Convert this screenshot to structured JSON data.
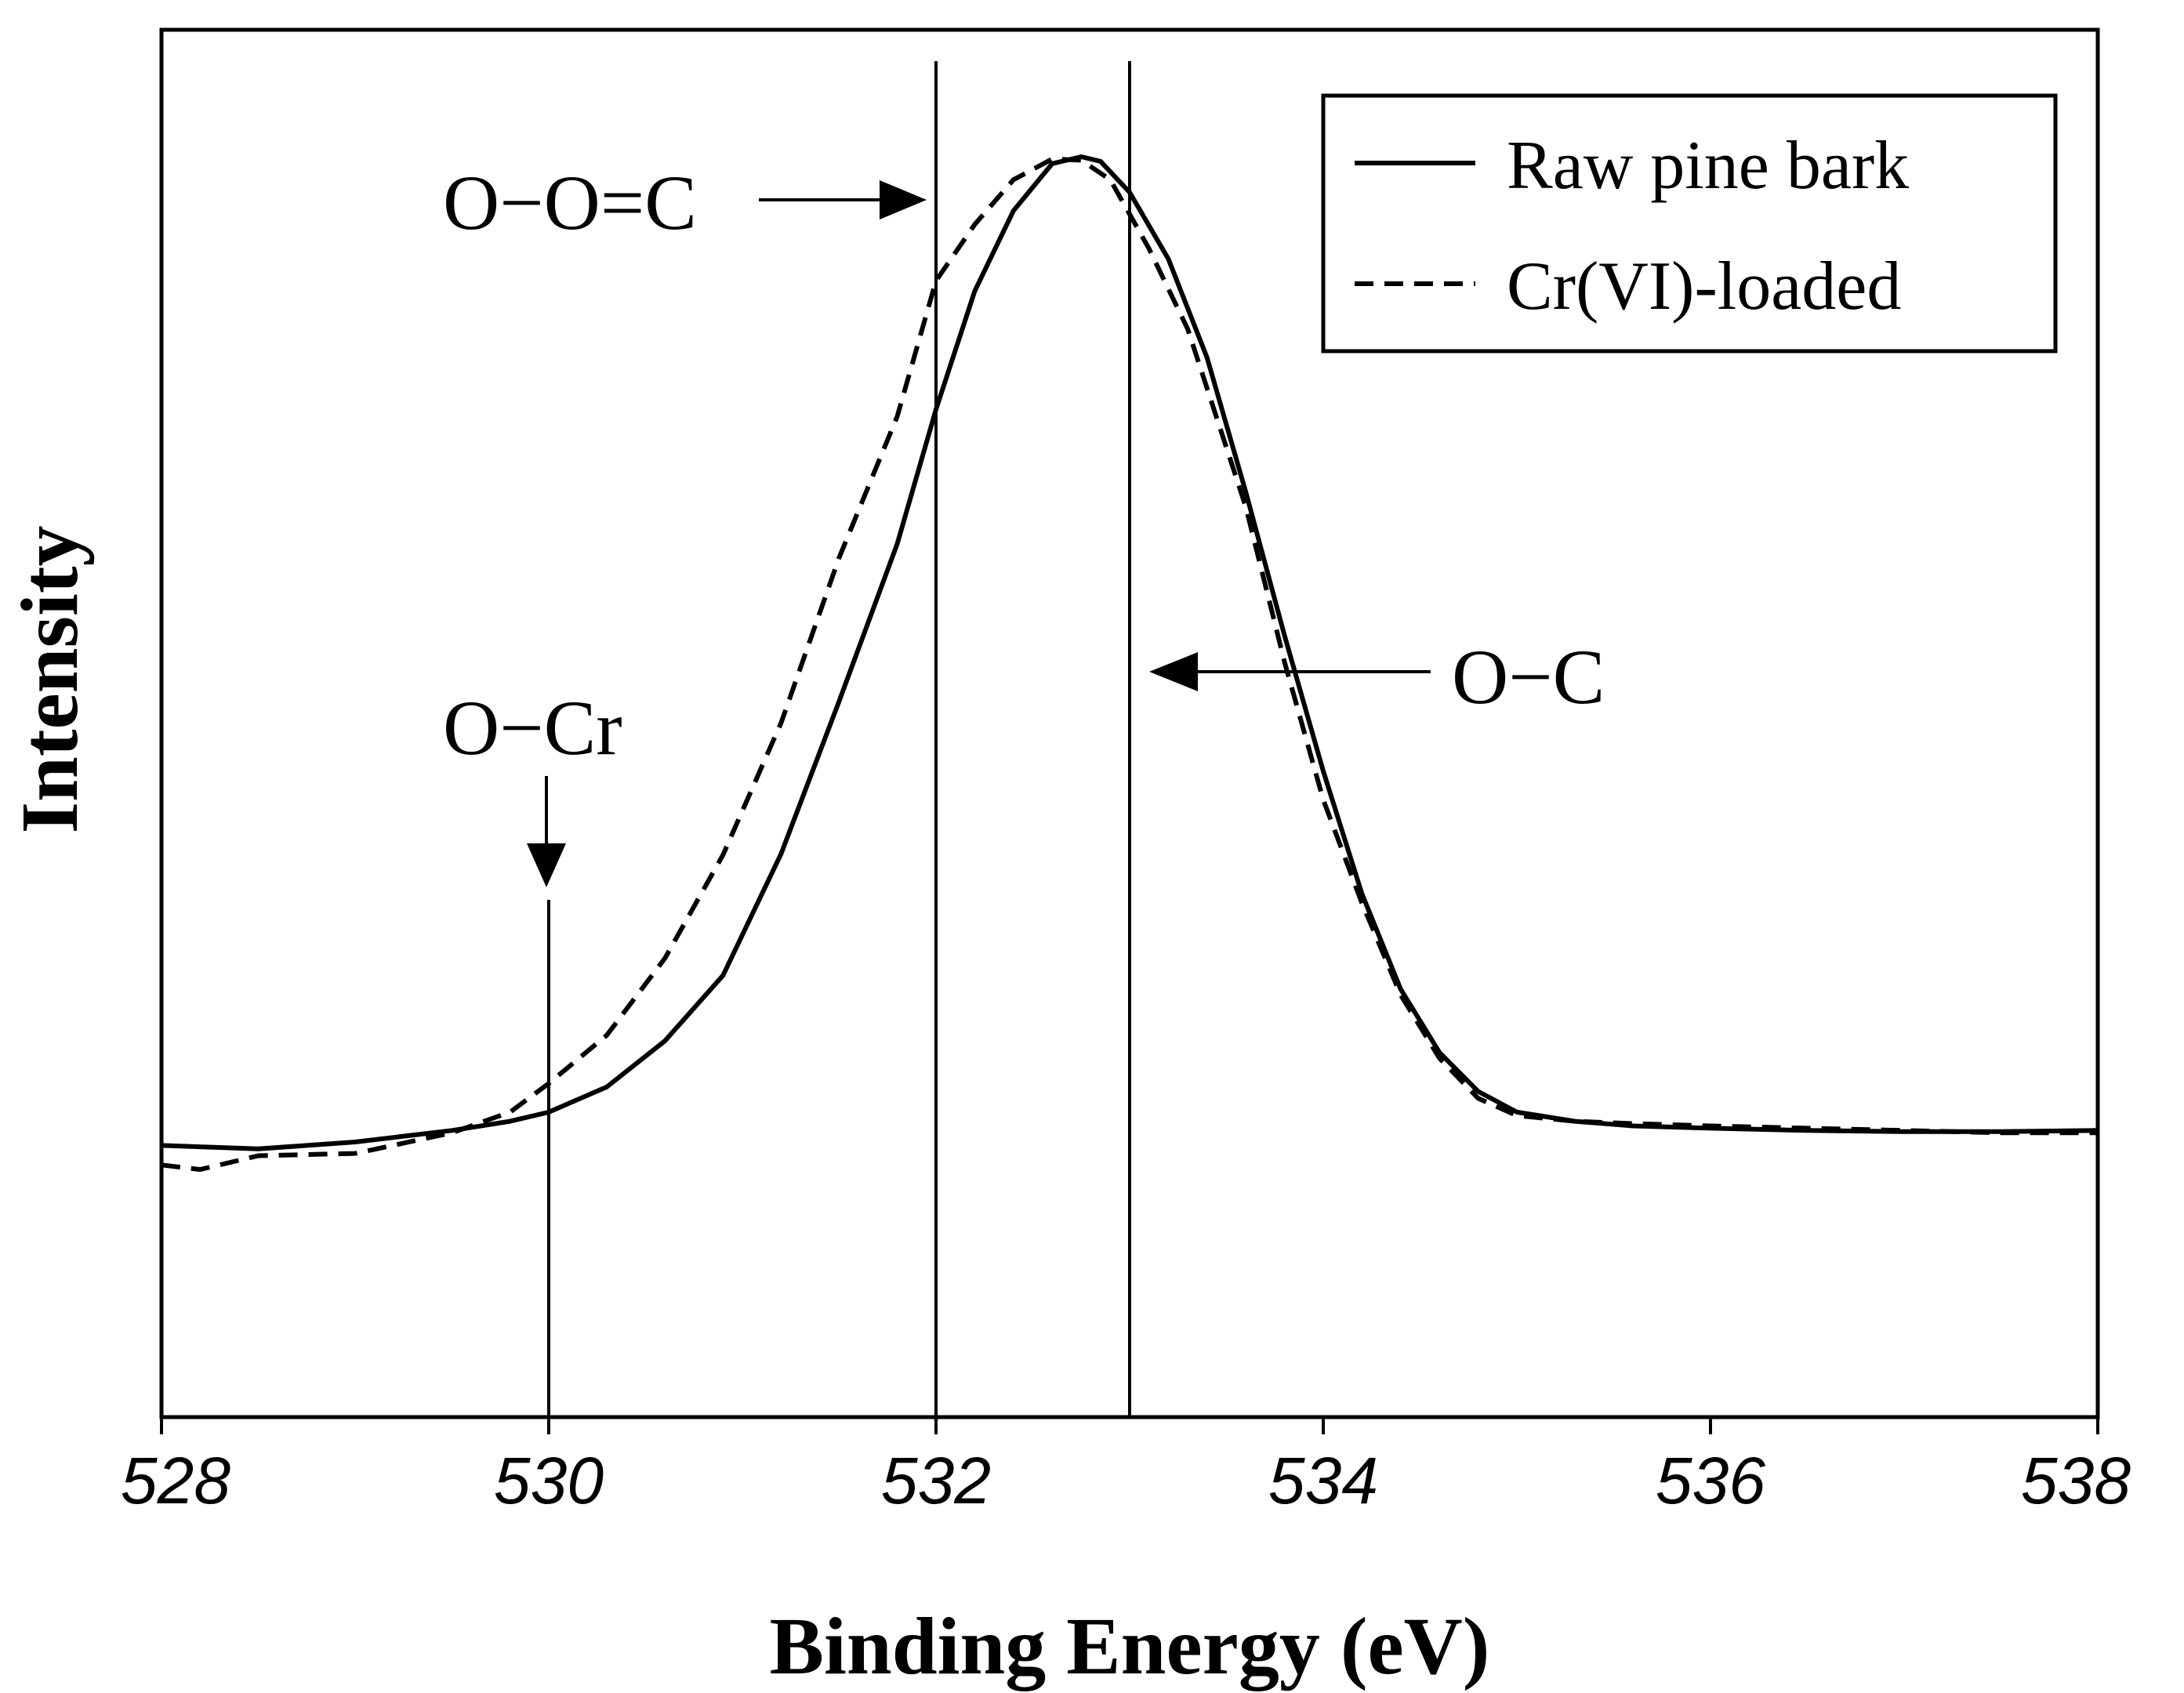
{
  "chart_data": {
    "type": "line",
    "xlabel": "Binding Energy (eV)",
    "ylabel": "Intensity",
    "xlim": [
      528,
      538
    ],
    "ylim": [
      0,
      1
    ],
    "x_ticks": [
      "528",
      "530",
      "532",
      "534",
      "536",
      "538"
    ],
    "grid": false,
    "legend_position": "top-right",
    "series": [
      {
        "name": "Raw pine bark",
        "style": "solid",
        "x": [
          528.0,
          528.5,
          529.0,
          529.5,
          529.8,
          530.0,
          530.3,
          530.6,
          530.9,
          531.2,
          531.5,
          531.8,
          532.0,
          532.2,
          532.4,
          532.6,
          532.75,
          532.85,
          533.0,
          533.2,
          533.4,
          533.6,
          533.8,
          534.0,
          534.2,
          534.4,
          534.6,
          534.8,
          535.0,
          535.3,
          535.6,
          536.0,
          536.5,
          537.0,
          537.5,
          538.0
        ],
        "y": [
          0.139,
          0.136,
          0.142,
          0.152,
          0.16,
          0.168,
          0.19,
          0.23,
          0.287,
          0.393,
          0.526,
          0.663,
          0.78,
          0.883,
          0.953,
          0.994,
          1.0,
          0.996,
          0.969,
          0.911,
          0.825,
          0.708,
          0.583,
          0.465,
          0.358,
          0.275,
          0.22,
          0.186,
          0.168,
          0.16,
          0.156,
          0.154,
          0.152,
          0.151,
          0.151,
          0.152
        ]
      },
      {
        "name": "Cr(VI)-loaded",
        "style": "dashed",
        "x": [
          528.0,
          528.2,
          528.5,
          529.0,
          529.5,
          529.8,
          530.0,
          530.3,
          530.6,
          530.9,
          531.2,
          531.5,
          531.8,
          532.0,
          532.2,
          532.4,
          532.6,
          532.75,
          532.9,
          533.1,
          533.3,
          533.6,
          533.8,
          534.0,
          534.2,
          534.4,
          534.6,
          534.8,
          535.0,
          535.3,
          535.6,
          536.0,
          536.5,
          537.0,
          537.5,
          538.0
        ],
        "y": [
          0.122,
          0.118,
          0.13,
          0.132,
          0.15,
          0.168,
          0.193,
          0.235,
          0.302,
          0.392,
          0.507,
          0.651,
          0.774,
          0.892,
          0.941,
          0.98,
          0.998,
          0.997,
          0.98,
          0.92,
          0.85,
          0.695,
          0.56,
          0.44,
          0.35,
          0.27,
          0.215,
          0.18,
          0.165,
          0.16,
          0.158,
          0.156,
          0.154,
          0.152,
          0.15,
          0.15
        ]
      }
    ],
    "reference_lines": [
      {
        "x": 530,
        "label": "O−Cr"
      },
      {
        "x": 532,
        "label": "O−O=C"
      },
      {
        "x": 533,
        "label": "O−C"
      }
    ]
  }
}
